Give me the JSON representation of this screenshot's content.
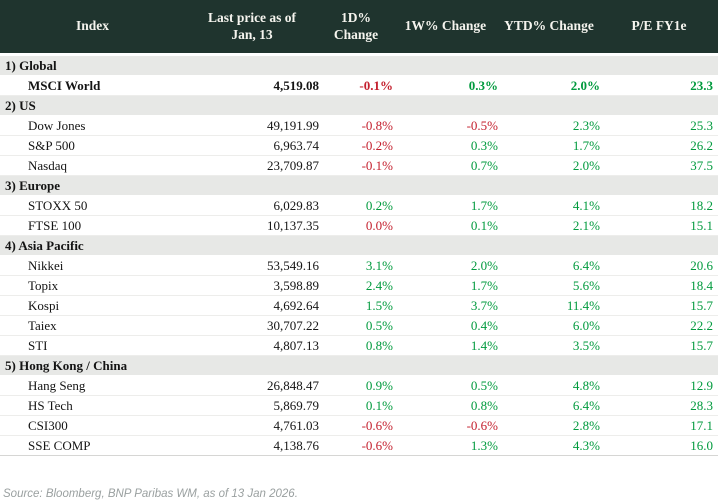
{
  "colors": {
    "header_bg": "#1f342e",
    "header_text": "#f5f4ee",
    "section_bg": "#e7e8e6",
    "positive": "#009a3d",
    "negative": "#c4202e",
    "text": "#141414",
    "footer_text": "#9aa0a0"
  },
  "chart_data": {
    "type": "table",
    "columns": [
      "Index",
      "Last price as of\nJan, 13",
      "1D% Change",
      "1W% Change",
      "YTD% Change",
      "P/E FY1e"
    ],
    "sections": [
      {
        "label": "1) Global",
        "rows": [
          {
            "index": "MSCI World",
            "price": "4,519.08",
            "changes": [
              "-0.1%",
              "0.3%",
              "2.0%"
            ],
            "tones": [
              "neg",
              "pos",
              "pos"
            ],
            "pe": "23.3",
            "bold": true
          }
        ]
      },
      {
        "label": "2) US",
        "rows": [
          {
            "index": "Dow Jones",
            "price": "49,191.99",
            "changes": [
              "-0.8%",
              "-0.5%",
              "2.3%"
            ],
            "tones": [
              "neg",
              "neg",
              "pos"
            ],
            "pe": "25.3",
            "bold": false
          },
          {
            "index": "S&P 500",
            "price": "6,963.74",
            "changes": [
              "-0.2%",
              "0.3%",
              "1.7%"
            ],
            "tones": [
              "neg",
              "pos",
              "pos"
            ],
            "pe": "26.2",
            "bold": false
          },
          {
            "index": "Nasdaq",
            "price": "23,709.87",
            "changes": [
              "-0.1%",
              "0.7%",
              "2.0%"
            ],
            "tones": [
              "neg",
              "pos",
              "pos"
            ],
            "pe": "37.5",
            "bold": false
          }
        ]
      },
      {
        "label": "3) Europe",
        "rows": [
          {
            "index": "STOXX 50",
            "price": "6,029.83",
            "changes": [
              "0.2%",
              "1.7%",
              "4.1%"
            ],
            "tones": [
              "pos",
              "pos",
              "pos"
            ],
            "pe": "18.2",
            "bold": false
          },
          {
            "index": "FTSE 100",
            "price": "10,137.35",
            "changes": [
              "0.0%",
              "0.1%",
              "2.1%"
            ],
            "tones": [
              "neg",
              "pos",
              "pos"
            ],
            "pe": "15.1",
            "bold": false
          }
        ]
      },
      {
        "label": "4) Asia Pacific",
        "rows": [
          {
            "index": "Nikkei",
            "price": "53,549.16",
            "changes": [
              "3.1%",
              "2.0%",
              "6.4%"
            ],
            "tones": [
              "pos",
              "pos",
              "pos"
            ],
            "pe": "20.6",
            "bold": false
          },
          {
            "index": "Topix",
            "price": "3,598.89",
            "changes": [
              "2.4%",
              "1.7%",
              "5.6%"
            ],
            "tones": [
              "pos",
              "pos",
              "pos"
            ],
            "pe": "18.4",
            "bold": false
          },
          {
            "index": "Kospi",
            "price": "4,692.64",
            "changes": [
              "1.5%",
              "3.7%",
              "11.4%"
            ],
            "tones": [
              "pos",
              "pos",
              "pos"
            ],
            "pe": "15.7",
            "bold": false
          },
          {
            "index": "Taiex",
            "price": "30,707.22",
            "changes": [
              "0.5%",
              "0.4%",
              "6.0%"
            ],
            "tones": [
              "pos",
              "pos",
              "pos"
            ],
            "pe": "22.2",
            "bold": false
          },
          {
            "index": "STI",
            "price": "4,807.13",
            "changes": [
              "0.8%",
              "1.4%",
              "3.5%"
            ],
            "tones": [
              "pos",
              "pos",
              "pos"
            ],
            "pe": "15.7",
            "bold": false
          }
        ]
      },
      {
        "label": "5) Hong Kong / China",
        "rows": [
          {
            "index": "Hang Seng",
            "price": "26,848.47",
            "changes": [
              "0.9%",
              "0.5%",
              "4.8%"
            ],
            "tones": [
              "pos",
              "pos",
              "pos"
            ],
            "pe": "12.9",
            "bold": false
          },
          {
            "index": "HS Tech",
            "price": "5,869.79",
            "changes": [
              "0.1%",
              "0.8%",
              "6.4%"
            ],
            "tones": [
              "pos",
              "pos",
              "pos"
            ],
            "pe": "28.3",
            "bold": false
          },
          {
            "index": "CSI300",
            "price": "4,761.03",
            "changes": [
              "-0.6%",
              "-0.6%",
              "2.8%"
            ],
            "tones": [
              "neg",
              "neg",
              "pos"
            ],
            "pe": "17.1",
            "bold": false
          },
          {
            "index": "SSE COMP",
            "price": "4,138.76",
            "changes": [
              "-0.6%",
              "1.3%",
              "4.3%"
            ],
            "tones": [
              "neg",
              "pos",
              "pos"
            ],
            "pe": "16.0",
            "bold": false
          }
        ]
      }
    ],
    "source": "Source: Bloomberg, BNP Paribas WM, as of 13 Jan 2026."
  }
}
